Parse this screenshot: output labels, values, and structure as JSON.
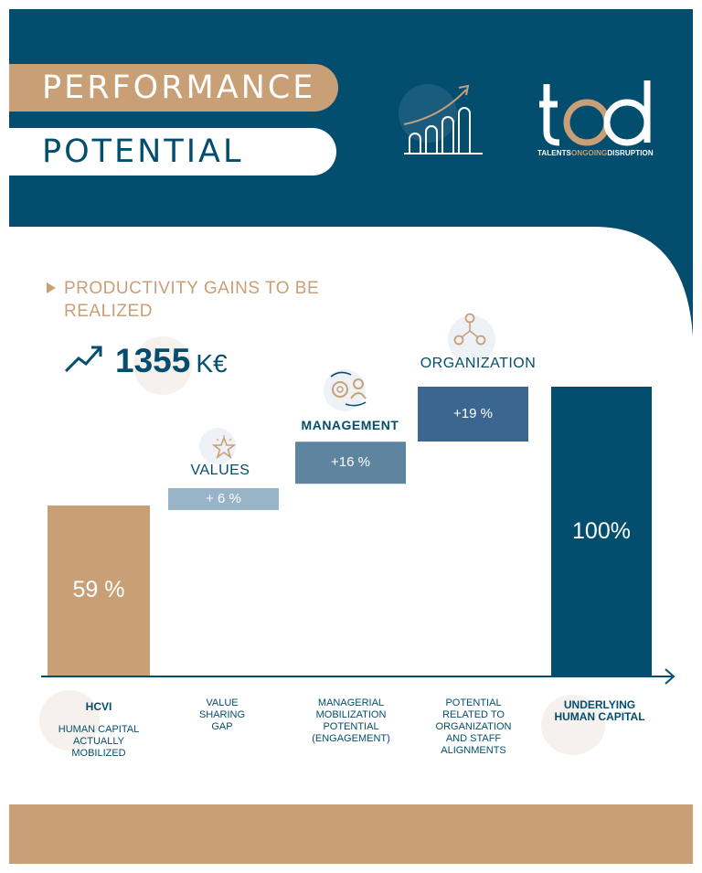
{
  "header": {
    "title_line1": "PERFORMANCE",
    "title_line2": "POTENTIAL",
    "logo": {
      "letters": "tod",
      "tagline_part1": "TALENTS",
      "tagline_part2": "ONGOING",
      "tagline_part3": "DISRUPTION"
    }
  },
  "section": {
    "title_line1": "PRODUCTIVITY GAINS TO BE",
    "title_line2": "REALIZED",
    "amount": "1355",
    "unit": "K€"
  },
  "colors": {
    "navy": "#034d6e",
    "tan": "#c99f76",
    "values_bar": "#97b4c9",
    "management_bar": "#5f849f",
    "organization_bar": "#3a6690"
  },
  "chart_data": {
    "type": "bar",
    "subtype": "waterfall",
    "categories": [
      "HCVI",
      "VALUES",
      "MANAGEMENT",
      "ORGANIZATION",
      "UNDERLYING HUMAN CAPITAL"
    ],
    "values": [
      59,
      6,
      16,
      19,
      100
    ],
    "value_labels": [
      "59 %",
      "+ 6 %",
      "+16 %",
      "+19 %",
      "100%"
    ],
    "bar_titles": [
      "",
      "VALUES",
      "MANAGEMENT",
      "ORGANIZATION",
      ""
    ],
    "ylim": [
      0,
      100
    ],
    "grid": false,
    "x_labels": [
      {
        "bold": "HCVI",
        "text": "HUMAN CAPITAL ACTUALLY MOBILIZED"
      },
      {
        "bold": "",
        "text": "VALUE SHARING GAP"
      },
      {
        "bold": "",
        "text": "MANAGERIAL MOBILIZATION POTENTIAL (ENGAGEMENT)"
      },
      {
        "bold": "",
        "text": "POTENTIAL RELATED TO ORGANIZATION AND STAFF ALIGNMENTS"
      },
      {
        "bold": "UNDERLYING HUMAN CAPITAL",
        "text": ""
      }
    ]
  }
}
